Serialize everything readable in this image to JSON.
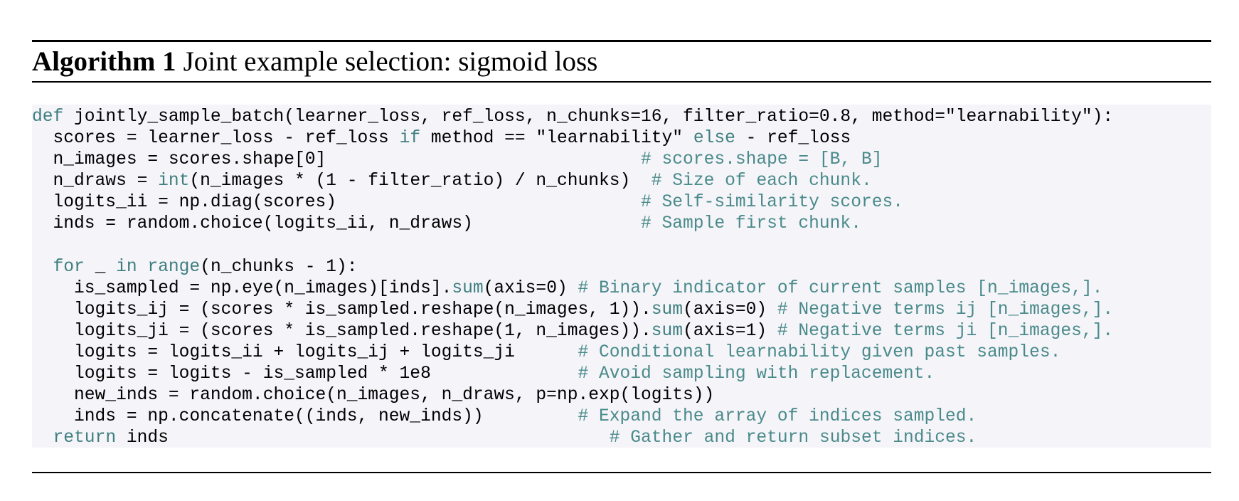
{
  "algorithm": {
    "label": "Algorithm 1",
    "title": "Joint example selection: sigmoid loss"
  },
  "code_lines": [
    [
      {
        "t": "def",
        "k": "kw"
      },
      {
        "t": " jointly_sample_batch(learner_loss, ref_loss, n_chunks=16, filter_ratio=0.8, method=\"learnability\"):"
      }
    ],
    [
      {
        "t": "  scores = learner_loss - ref_loss "
      },
      {
        "t": "if",
        "k": "kw"
      },
      {
        "t": " method == \"learnability\" "
      },
      {
        "t": "else",
        "k": "kw"
      },
      {
        "t": " - ref_loss"
      }
    ],
    [
      {
        "t": "  n_images = scores.shape[0]                              "
      },
      {
        "t": "# scores.shape = [B, B]",
        "k": "cm"
      }
    ],
    [
      {
        "t": "  n_draws = "
      },
      {
        "t": "int",
        "k": "kw"
      },
      {
        "t": "(n_images * (1 - filter_ratio) / n_chunks)  "
      },
      {
        "t": "# Size of each chunk.",
        "k": "cm"
      }
    ],
    [
      {
        "t": "  logits_ii = np.diag(scores)                             "
      },
      {
        "t": "# Self-similarity scores.",
        "k": "cm"
      }
    ],
    [
      {
        "t": "  inds = random.choice(logits_ii, n_draws)                "
      },
      {
        "t": "# Sample first chunk.",
        "k": "cm"
      }
    ],
    [
      {
        "t": ""
      }
    ],
    [
      {
        "t": "  "
      },
      {
        "t": "for",
        "k": "kw"
      },
      {
        "t": " _ "
      },
      {
        "t": "in",
        "k": "kw"
      },
      {
        "t": " "
      },
      {
        "t": "range",
        "k": "kw"
      },
      {
        "t": "(n_chunks - 1):"
      }
    ],
    [
      {
        "t": "    is_sampled = np.eye(n_images)[inds]."
      },
      {
        "t": "sum",
        "k": "kw"
      },
      {
        "t": "(axis=0) "
      },
      {
        "t": "# Binary indicator of current samples [n_images,].",
        "k": "cm"
      }
    ],
    [
      {
        "t": "    logits_ij = (scores * is_sampled.reshape(n_images, 1))."
      },
      {
        "t": "sum",
        "k": "kw"
      },
      {
        "t": "(axis=0) "
      },
      {
        "t": "# Negative terms ij [n_images,].",
        "k": "cm"
      }
    ],
    [
      {
        "t": "    logits_ji = (scores * is_sampled.reshape(1, n_images))."
      },
      {
        "t": "sum",
        "k": "kw"
      },
      {
        "t": "(axis=1) "
      },
      {
        "t": "# Negative terms ji [n_images,].",
        "k": "cm"
      }
    ],
    [
      {
        "t": "    logits = logits_ii + logits_ij + logits_ji      "
      },
      {
        "t": "# Conditional learnability given past samples.",
        "k": "cm"
      }
    ],
    [
      {
        "t": "    logits = logits - is_sampled * 1e8              "
      },
      {
        "t": "# Avoid sampling with replacement.",
        "k": "cm"
      }
    ],
    [
      {
        "t": "    new_inds = random.choice(n_images, n_draws, p=np.exp(logits))"
      }
    ],
    [
      {
        "t": "    inds = np.concatenate((inds, new_inds))         "
      },
      {
        "t": "# Expand the array of indices sampled.",
        "k": "cm"
      }
    ],
    [
      {
        "t": "  "
      },
      {
        "t": "return",
        "k": "kw"
      },
      {
        "t": " inds                                          "
      },
      {
        "t": "# Gather and return subset indices.",
        "k": "cm"
      }
    ]
  ]
}
